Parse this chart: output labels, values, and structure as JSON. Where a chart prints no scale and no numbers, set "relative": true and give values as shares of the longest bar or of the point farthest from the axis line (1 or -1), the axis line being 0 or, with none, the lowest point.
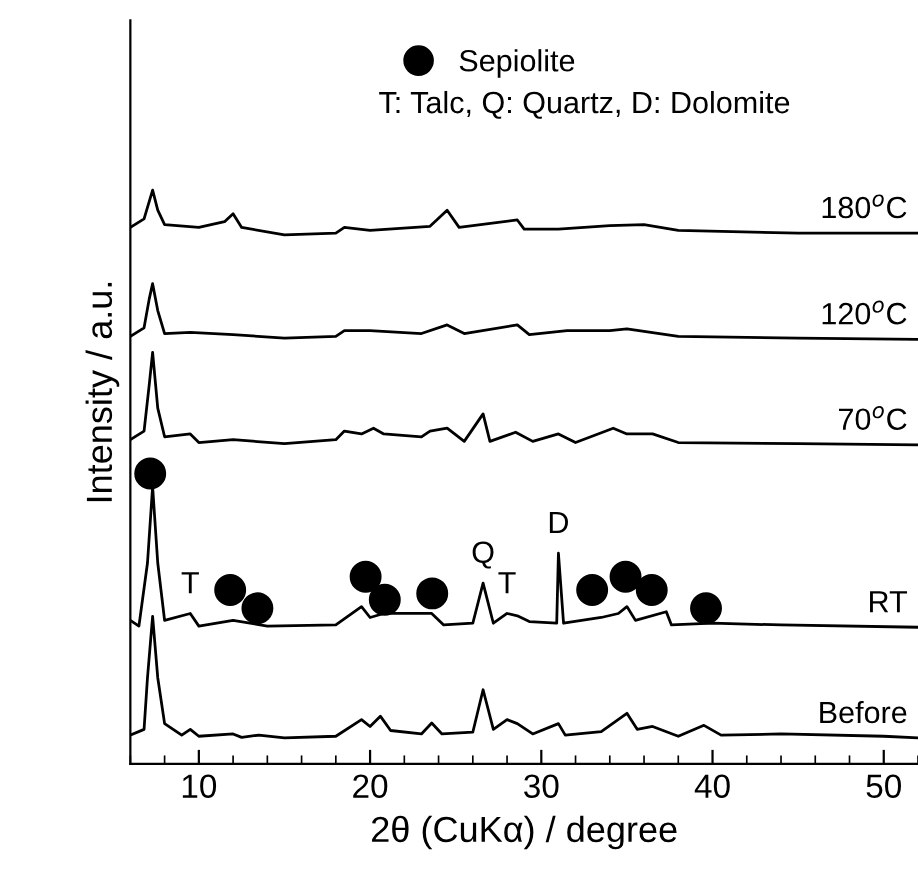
{
  "chart_data": {
    "type": "line",
    "xlabel": "2θ (CuKα) / degree",
    "ylabel": "Intensity / a.u.",
    "relative": true,
    "xlim": [
      6,
      52
    ],
    "xticks": [
      10,
      20,
      30,
      40,
      50
    ],
    "tick_labels": "x",
    "grid": false,
    "legend": "top",
    "line_style": "solid",
    "annotations": [
      "T: Talc, Q: Quartz, D: Dolomite",
      {
        "text": "T",
        "x": 9.5,
        "y": 0.262
      },
      {
        "text": "Q",
        "x": 26.6,
        "y": 0.315
      },
      {
        "text": "T",
        "x": 28.0,
        "y": 0.262
      },
      {
        "text": "D",
        "x": 31.0,
        "y": 0.367
      }
    ],
    "series": [
      {
        "name": "Before",
        "color": "#000000",
        "x": [
          6,
          6.8,
          7.0,
          7.3,
          7.6,
          8.0,
          9.0,
          9.5,
          10,
          12,
          12.5,
          13.5,
          15,
          18,
          19.5,
          20,
          20.6,
          21.2,
          23.0,
          23.6,
          24.2,
          26.0,
          26.6,
          27.2,
          28,
          28.6,
          29.5,
          31,
          31.4,
          33.5,
          35.0,
          35.6,
          36.5,
          38,
          39.5,
          40.5,
          44,
          50,
          52
        ],
        "values": [
          0.05,
          0.06,
          0.15,
          0.257,
          0.15,
          0.07,
          0.05,
          0.06,
          0.048,
          0.052,
          0.046,
          0.05,
          0.045,
          0.048,
          0.077,
          0.065,
          0.083,
          0.058,
          0.052,
          0.071,
          0.052,
          0.055,
          0.129,
          0.06,
          0.077,
          0.07,
          0.052,
          0.07,
          0.05,
          0.056,
          0.088,
          0.06,
          0.065,
          0.048,
          0.067,
          0.05,
          0.052,
          0.048,
          0.045
        ]
      },
      {
        "name": "RT",
        "color": "#000000",
        "x": [
          6.0,
          6.5,
          7.0,
          7.3,
          7.6,
          8.0,
          9.5,
          10,
          12,
          14,
          18,
          19.5,
          20,
          20.8,
          23.6,
          24.3,
          26.0,
          26.6,
          27.2,
          28.0,
          28.6,
          29.3,
          30.9,
          31.0,
          31.3,
          33.5,
          34.5,
          35.0,
          35.5,
          37.3,
          37.6,
          40,
          44,
          52
        ],
        "values": [
          0.25,
          0.24,
          0.35,
          0.483,
          0.35,
          0.25,
          0.262,
          0.24,
          0.25,
          0.24,
          0.242,
          0.274,
          0.255,
          0.262,
          0.262,
          0.242,
          0.245,
          0.315,
          0.245,
          0.262,
          0.258,
          0.248,
          0.245,
          0.367,
          0.245,
          0.255,
          0.262,
          0.274,
          0.25,
          0.265,
          0.242,
          0.245,
          0.242,
          0.238
        ]
      },
      {
        "name": "70$^{o}$C",
        "color": "#000000",
        "x": [
          6,
          6.8,
          7.1,
          7.3,
          7.6,
          8.0,
          9.5,
          10,
          12,
          15,
          18,
          18.5,
          19.5,
          20.2,
          20.8,
          23,
          23.5,
          24.5,
          25.5,
          26.6,
          27,
          28.5,
          29.5,
          31,
          32,
          34.2,
          35,
          36.5,
          38,
          45,
          52
        ],
        "values": [
          0.565,
          0.58,
          0.66,
          0.717,
          0.62,
          0.57,
          0.575,
          0.56,
          0.565,
          0.558,
          0.565,
          0.58,
          0.575,
          0.585,
          0.575,
          0.57,
          0.58,
          0.585,
          0.562,
          0.61,
          0.562,
          0.578,
          0.562,
          0.575,
          0.56,
          0.585,
          0.575,
          0.575,
          0.56,
          0.558,
          0.556
        ]
      },
      {
        "name": "120$^{o}$C",
        "color": "#000000",
        "x": [
          6,
          6.8,
          7.1,
          7.3,
          7.6,
          8.0,
          9.5,
          12,
          15,
          18,
          18.5,
          20,
          23,
          24.5,
          25.5,
          28.6,
          29.3,
          31.5,
          34,
          35,
          38,
          45,
          52
        ],
        "values": [
          0.745,
          0.76,
          0.81,
          0.837,
          0.79,
          0.75,
          0.752,
          0.748,
          0.742,
          0.745,
          0.755,
          0.755,
          0.75,
          0.765,
          0.75,
          0.765,
          0.748,
          0.755,
          0.755,
          0.758,
          0.745,
          0.742,
          0.74
        ]
      },
      {
        "name": "180$^{o}$C",
        "color": "#000000",
        "x": [
          6,
          6.8,
          7.1,
          7.3,
          7.6,
          8.0,
          10,
          11.5,
          12.0,
          12.5,
          15,
          18,
          18.5,
          20,
          23.5,
          24.5,
          25.2,
          28.6,
          29,
          31,
          34,
          36,
          38,
          45,
          52
        ],
        "values": [
          0.935,
          0.95,
          0.98,
          1.0,
          0.965,
          0.94,
          0.935,
          0.945,
          0.959,
          0.935,
          0.922,
          0.925,
          0.935,
          0.93,
          0.937,
          0.965,
          0.935,
          0.948,
          0.932,
          0.932,
          0.938,
          0.94,
          0.93,
          0.925,
          0.925
        ]
      },
      {
        "name": "Sepiolite",
        "type": "scatter",
        "marker": "circle",
        "color": "#000000",
        "x": [
          7.16,
          11.83,
          13.42,
          19.74,
          20.86,
          23.63,
          32.97,
          34.92,
          36.45,
          39.62
        ],
        "values": [
          0.506,
          0.303,
          0.271,
          0.326,
          0.286,
          0.297,
          0.303,
          0.326,
          0.303,
          0.271
        ]
      }
    ]
  }
}
